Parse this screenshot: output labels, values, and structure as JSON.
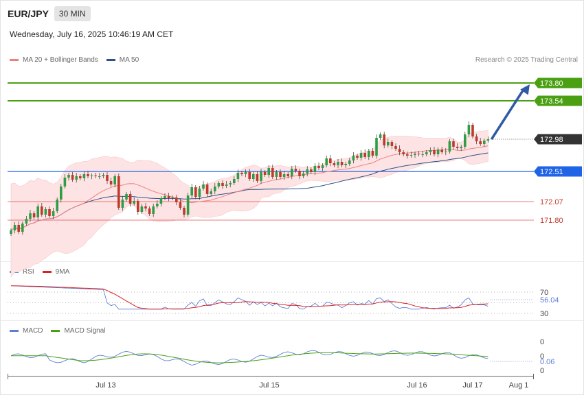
{
  "header": {
    "symbol": "EUR/JPY",
    "interval": "30 MIN",
    "datetime": "Wednesday, July 16, 2025 10:46:19 AM CET",
    "credit": "Research © 2025 Trading Central"
  },
  "colors": {
    "resistance": "#4aa012",
    "pivot": "#1f64e6",
    "support": "#e05252",
    "last_price": "#333333",
    "ma20": "#f08080",
    "ma50": "#2e4f8a",
    "bollinger_fill": "#fde3e3",
    "rsi": "#5b7fd6",
    "rsi_ma": "#e02020",
    "macd": "#5b7fd6",
    "macd_signal": "#4aa012",
    "candle_up": "#2e9e45",
    "candle_down": "#c0392b",
    "arrow": "#2f5aa6"
  },
  "chart_data": [
    {
      "type": "candlestick",
      "panel": "price",
      "legend": [
        {
          "name": "MA 20 + Bollinger Bands",
          "color": "#f08080"
        },
        {
          "name": "MA 50",
          "color": "#2e4f8a"
        }
      ],
      "ylim": [
        171.45,
        174.05
      ],
      "x_ticks": [
        "Jul 13",
        "Jul 15",
        "Jul 16",
        "Jul 17",
        "Aug 1"
      ],
      "levels": [
        {
          "value": 173.8,
          "label": "173.80",
          "kind": "resistance"
        },
        {
          "value": 173.54,
          "label": "173.54",
          "kind": "resistance"
        },
        {
          "value": 172.98,
          "label": "172.98",
          "kind": "last"
        },
        {
          "value": 172.51,
          "label": "172.51",
          "kind": "pivot"
        },
        {
          "value": 172.07,
          "label": "172.07",
          "kind": "support"
        },
        {
          "value": 171.8,
          "label": "171.80",
          "kind": "support"
        }
      ],
      "close": [
        171.65,
        171.73,
        171.63,
        171.75,
        171.82,
        171.9,
        171.84,
        172.0,
        171.88,
        171.96,
        171.86,
        171.93,
        172.1,
        172.29,
        172.42,
        172.46,
        172.39,
        172.44,
        172.41,
        172.47,
        172.44,
        172.45,
        172.44,
        172.44,
        172.46,
        172.37,
        172.32,
        172.44,
        171.98,
        172.1,
        172.18,
        172.04,
        172.08,
        171.92,
        172.0,
        171.97,
        171.89,
        172.0,
        172.04,
        172.12,
        172.15,
        172.12,
        172.13,
        172.06,
        171.98,
        171.88,
        172.16,
        172.28,
        172.14,
        172.26,
        172.32,
        172.18,
        172.22,
        172.29,
        172.34,
        172.3,
        172.32,
        172.34,
        172.4,
        172.49,
        172.47,
        172.5,
        172.4,
        172.47,
        172.37,
        172.5,
        172.46,
        172.56,
        172.43,
        172.5,
        172.43,
        172.47,
        172.44,
        172.55,
        172.52,
        172.44,
        172.48,
        172.54,
        172.5,
        172.59,
        172.56,
        172.6,
        172.7,
        172.63,
        172.6,
        172.65,
        172.6,
        172.62,
        172.67,
        172.74,
        172.71,
        172.78,
        172.72,
        172.81,
        172.74,
        173.0,
        173.05,
        172.89,
        172.94,
        172.88,
        172.84,
        172.79,
        172.76,
        172.74,
        172.75,
        172.77,
        172.76,
        172.76,
        172.79,
        172.82,
        172.76,
        172.83,
        172.79,
        172.8,
        172.95,
        172.87,
        172.85,
        172.87,
        173.05,
        173.19,
        173.02,
        172.95,
        172.91,
        172.96,
        172.98
      ],
      "open_first": 171.6,
      "ranges": {
        "ma20": [
          171.7,
          172.88
        ],
        "ma50": [
          171.5,
          172.82
        ]
      }
    },
    {
      "type": "line",
      "panel": "rsi",
      "legend": [
        {
          "name": "RSI",
          "color": "#5b7fd6"
        },
        {
          "name": "9MA",
          "color": "#e02020"
        }
      ],
      "levels": [
        {
          "value": 70,
          "label": "70"
        },
        {
          "value": 30,
          "label": "30"
        }
      ],
      "last_value": "56.04"
    },
    {
      "type": "line",
      "panel": "macd",
      "legend": [
        {
          "name": "MACD",
          "color": "#5b7fd6"
        },
        {
          "name": "MACD Signal",
          "color": "#4aa012"
        }
      ],
      "axis_labels": [
        "0",
        "0",
        "0"
      ],
      "last_value": "0.06"
    }
  ]
}
